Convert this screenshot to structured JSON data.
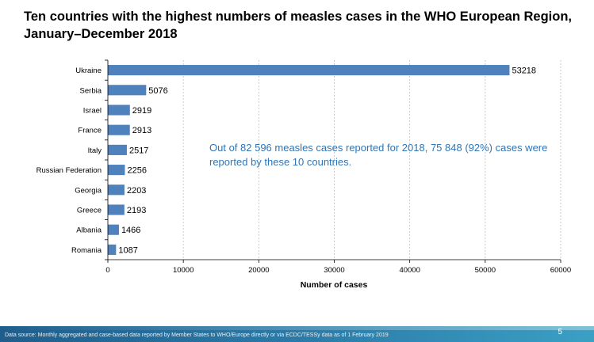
{
  "title": "Ten countries with the highest numbers of measles cases in the WHO European Region, January–December 2018",
  "annotation": "Out of 82 596 measles cases reported for 2018, 75 848 (92%) cases were reported by these 10 countries.",
  "footer": {
    "source": "Data source: Monthly aggregated and case-based data reported by Member States to WHO/Europe directly or via ECDC/TESSy data as of 1 February 2019",
    "page_number": "5"
  },
  "colors": {
    "bar": "#4f81bd",
    "annotation": "#2e75b6"
  },
  "chart_data": {
    "type": "bar",
    "orientation": "horizontal",
    "categories": [
      "Ukraine",
      "Serbia",
      "Israel",
      "France",
      "Italy",
      "Russian Federation",
      "Georgia",
      "Greece",
      "Albania",
      "Romania"
    ],
    "values": [
      53218,
      5076,
      2919,
      2913,
      2517,
      2256,
      2203,
      2193,
      1466,
      1087
    ],
    "xlabel": "Number of cases",
    "xlim": [
      0,
      60000
    ],
    "xticks": [
      0,
      10000,
      20000,
      30000,
      40000,
      50000,
      60000
    ],
    "grid": "vertical dashed",
    "legend": "none"
  }
}
